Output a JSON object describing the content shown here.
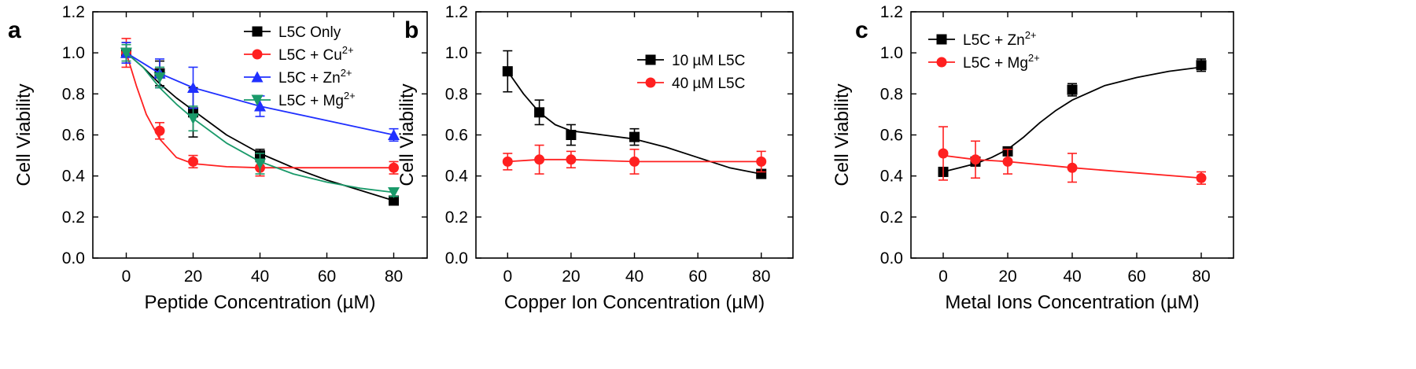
{
  "chart_data": [
    {
      "panel": "a",
      "type": "line",
      "xlabel": "Peptide Concentration (µM)",
      "ylabel": "Cell Viability",
      "xlim": [
        -10,
        90
      ],
      "ylim": [
        0.0,
        1.2
      ],
      "xticks": [
        "0",
        "20",
        "40",
        "60",
        "80"
      ],
      "yticks": [
        "0.0",
        "0.2",
        "0.4",
        "0.6",
        "0.8",
        "1.0",
        "1.2"
      ],
      "legend_position": "top-right",
      "series": [
        {
          "name": "L5C Only",
          "color": "#000000",
          "marker": "square",
          "x": [
            0,
            10,
            20,
            40,
            80
          ],
          "values": [
            1.0,
            0.9,
            0.71,
            0.5,
            0.28
          ],
          "err": [
            0.05,
            0.06,
            0.12,
            0.03,
            0.02
          ],
          "fit_x": [
            0,
            5,
            10,
            15,
            20,
            30,
            40,
            50,
            60,
            70,
            80
          ],
          "fit_y": [
            1.0,
            0.93,
            0.85,
            0.78,
            0.72,
            0.6,
            0.51,
            0.44,
            0.38,
            0.33,
            0.28
          ]
        },
        {
          "name": "L5C + Cu",
          "sup": "2+",
          "color": "#ff2020",
          "marker": "circle",
          "x": [
            0,
            10,
            20,
            40,
            80
          ],
          "values": [
            1.0,
            0.62,
            0.47,
            0.44,
            0.44
          ],
          "err": [
            0.07,
            0.04,
            0.03,
            0.04,
            0.03
          ],
          "fit_x": [
            0,
            3,
            6,
            10,
            15,
            20,
            30,
            40,
            60,
            80
          ],
          "fit_y": [
            1.0,
            0.84,
            0.7,
            0.58,
            0.49,
            0.46,
            0.445,
            0.44,
            0.44,
            0.44
          ],
          "marker_only_fit": false
        },
        {
          "name": "L5C + Zn",
          "sup": "2+",
          "color": "#2030ff",
          "marker": "triangle-up",
          "x": [
            0,
            10,
            20,
            40,
            80
          ],
          "values": [
            1.0,
            0.9,
            0.83,
            0.74,
            0.6
          ],
          "err": [
            0.05,
            0.07,
            0.1,
            0.05,
            0.03
          ],
          "fit_x": [
            0,
            10,
            20,
            40,
            80
          ],
          "fit_y": [
            1.0,
            0.9,
            0.83,
            0.74,
            0.6
          ]
        },
        {
          "name": "L5C + Mg",
          "sup": "2+",
          "color": "#1a9a6a",
          "marker": "triangle-down",
          "x": [
            0,
            10,
            20,
            40,
            80
          ],
          "values": [
            1.0,
            0.88,
            0.68,
            0.46,
            0.32
          ],
          "err": [
            0.04,
            0.05,
            0.06,
            0.05,
            0.02
          ],
          "fit_x": [
            0,
            5,
            10,
            15,
            20,
            30,
            40,
            50,
            60,
            70,
            80
          ],
          "fit_y": [
            1.0,
            0.93,
            0.83,
            0.75,
            0.68,
            0.56,
            0.47,
            0.41,
            0.37,
            0.34,
            0.32
          ]
        }
      ]
    },
    {
      "panel": "b",
      "type": "line",
      "xlabel": "Copper Ion Concentration (µM)",
      "ylabel": "Cell Viability",
      "xlim": [
        -10,
        90
      ],
      "ylim": [
        0.0,
        1.2
      ],
      "xticks": [
        "0",
        "20",
        "40",
        "60",
        "80"
      ],
      "yticks": [
        "0.0",
        "0.2",
        "0.4",
        "0.6",
        "0.8",
        "1.0",
        "1.2"
      ],
      "legend_position": "top-right",
      "series": [
        {
          "name": "10 µM L5C",
          "color": "#000000",
          "marker": "square",
          "x": [
            0,
            10,
            20,
            40,
            80
          ],
          "values": [
            0.91,
            0.71,
            0.6,
            0.59,
            0.41
          ],
          "err": [
            0.1,
            0.06,
            0.05,
            0.04,
            0.02
          ],
          "fit_x": [
            0,
            5,
            10,
            15,
            20,
            30,
            40,
            50,
            60,
            70,
            80
          ],
          "fit_y": [
            0.91,
            0.8,
            0.71,
            0.65,
            0.62,
            0.6,
            0.58,
            0.54,
            0.49,
            0.44,
            0.41
          ]
        },
        {
          "name": "40 µM L5C",
          "color": "#ff2020",
          "marker": "circle",
          "x": [
            0,
            10,
            20,
            40,
            80
          ],
          "values": [
            0.47,
            0.48,
            0.48,
            0.47,
            0.47
          ],
          "err": [
            0.04,
            0.07,
            0.04,
            0.06,
            0.05
          ],
          "fit_x": [
            0,
            10,
            20,
            40,
            80
          ],
          "fit_y": [
            0.47,
            0.48,
            0.48,
            0.47,
            0.47
          ]
        }
      ]
    },
    {
      "panel": "c",
      "type": "line",
      "xlabel": "Metal Ions Concentration (µM)",
      "ylabel": "Cell Viability",
      "xlim": [
        -10,
        90
      ],
      "ylim": [
        0.0,
        1.2
      ],
      "xticks": [
        "0",
        "20",
        "40",
        "60",
        "80"
      ],
      "yticks": [
        "0.0",
        "0.2",
        "0.4",
        "0.6",
        "0.8",
        "1.0",
        "1.2"
      ],
      "legend_position": "top-left",
      "series": [
        {
          "name": "L5C + Zn",
          "sup": "2+",
          "color": "#000000",
          "marker": "square",
          "x": [
            0,
            10,
            20,
            40,
            80
          ],
          "values": [
            0.42,
            0.47,
            0.52,
            0.82,
            0.94
          ],
          "err": [
            0.02,
            0.02,
            0.02,
            0.03,
            0.03
          ],
          "fit_x": [
            0,
            5,
            10,
            15,
            20,
            25,
            30,
            35,
            40,
            50,
            60,
            70,
            80
          ],
          "fit_y": [
            0.42,
            0.44,
            0.46,
            0.49,
            0.53,
            0.59,
            0.66,
            0.72,
            0.77,
            0.84,
            0.88,
            0.91,
            0.93
          ]
        },
        {
          "name": "L5C + Mg",
          "sup": "2+",
          "color": "#ff2020",
          "marker": "circle",
          "x": [
            0,
            10,
            20,
            40,
            80
          ],
          "values": [
            0.51,
            0.48,
            0.47,
            0.44,
            0.39
          ],
          "err": [
            0.13,
            0.09,
            0.06,
            0.07,
            0.03
          ],
          "fit_x": [
            0,
            10,
            20,
            40,
            80
          ],
          "fit_y": [
            0.5,
            0.48,
            0.47,
            0.44,
            0.39
          ]
        }
      ]
    }
  ]
}
